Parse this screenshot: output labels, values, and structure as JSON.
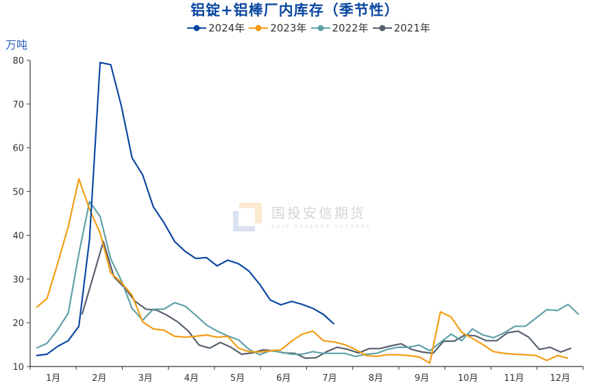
{
  "chart_data": {
    "type": "line",
    "title": "铝锭+铝棒厂内库存（季节性）",
    "ylabel": "万吨",
    "xlabel": "",
    "ylim": [
      10,
      80
    ],
    "yticks": [
      10,
      20,
      30,
      40,
      50,
      60,
      70,
      80
    ],
    "categories": [
      "1月",
      "2月",
      "3月",
      "4月",
      "5月",
      "6月",
      "7月",
      "8月",
      "9月",
      "10月",
      "11月",
      "12月"
    ],
    "x_unit": "week of year (0-51)",
    "legend_position": "top",
    "grid": false,
    "series": [
      {
        "name": "2024年",
        "color": "#0a47a0",
        "start_week": 0,
        "values": [
          12.5,
          12.8,
          14.6,
          15.9,
          19.2,
          39.0,
          79.5,
          79.0,
          69.5,
          57.7,
          53.8,
          46.5,
          42.9,
          38.6,
          36.3,
          34.7,
          34.9,
          33.0,
          34.3,
          33.5,
          31.8,
          28.8,
          25.2,
          24.1,
          24.9,
          24.2,
          23.3,
          21.9,
          19.7
        ]
      },
      {
        "name": "2023年",
        "color": "#f39c12",
        "start_week": 0,
        "values": [
          23.5,
          25.5,
          33.5,
          42.0,
          52.9,
          46.0,
          40.5,
          31.4,
          29.2,
          26.3,
          20.2,
          18.6,
          18.3,
          16.9,
          16.7,
          16.9,
          17.2,
          16.7,
          16.9,
          14.2,
          13.4,
          13.3,
          13.6,
          13.8,
          15.8,
          17.4,
          18.1,
          15.9,
          15.6,
          15.0,
          13.9,
          12.5,
          12.3,
          12.7,
          12.7,
          12.5,
          12.2,
          10.8,
          22.5,
          21.3,
          17.8,
          16.4,
          15.0,
          13.4,
          13.0,
          12.8,
          12.7,
          12.5,
          11.4,
          12.5,
          11.9
        ]
      },
      {
        "name": "2022年",
        "color": "#5fa0a8",
        "start_week": 0,
        "values": [
          14.2,
          15.3,
          18.4,
          22.2,
          35.8,
          47.7,
          44.3,
          34.6,
          29.6,
          23.3,
          20.6,
          23.1,
          23.1,
          24.6,
          23.8,
          21.7,
          19.5,
          18.1,
          17.0,
          16.1,
          13.9,
          12.7,
          13.6,
          13.3,
          12.8,
          12.8,
          13.4,
          13.0,
          13.0,
          13.0,
          12.3,
          12.8,
          13.0,
          13.9,
          14.4,
          14.4,
          14.9,
          13.6,
          15.5,
          17.4,
          15.9,
          18.6,
          17.2,
          16.6,
          17.7,
          19.2,
          19.2,
          21.1,
          23.0,
          22.8,
          24.2,
          21.9
        ]
      },
      {
        "name": "2021年",
        "color": "#555f6b",
        "start_week": 4.3,
        "values": [
          21.9,
          30.2,
          38.6,
          30.5,
          28.0,
          24.9,
          23.1,
          22.9,
          21.7,
          20.2,
          18.1,
          14.9,
          14.2,
          15.5,
          14.4,
          12.8,
          13.1,
          13.8,
          13.6,
          13.1,
          13.0,
          11.9,
          12.0,
          13.4,
          14.4,
          13.9,
          13.1,
          14.1,
          14.1,
          14.7,
          15.2,
          13.9,
          13.3,
          13.0,
          15.8,
          15.8,
          17.2,
          17.0,
          15.9,
          15.9,
          17.7,
          18.1,
          16.7,
          13.9,
          14.4,
          13.3,
          14.2
        ]
      }
    ]
  },
  "unit_label": "万吨",
  "watermark": {
    "cn": "国投安信期货",
    "en": "SDIC ESSENCE FUTURES"
  }
}
